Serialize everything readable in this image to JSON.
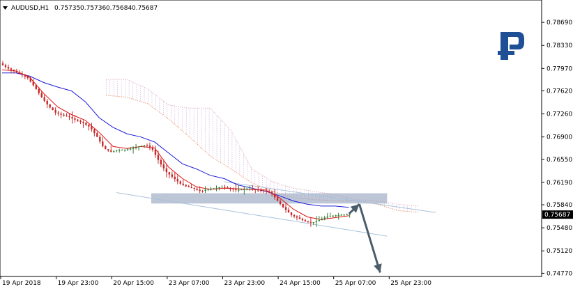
{
  "header": {
    "symbol": "AUDUSD,H1",
    "open": "0.75735",
    "high": "0.75736",
    "low": "0.75684",
    "close": "0.75687"
  },
  "price_tag": "0.75687",
  "logo": "R",
  "chart_data": {
    "type": "candlestick",
    "symbol": "AUDUSD",
    "timeframe": "H1",
    "ylim": [
      0.7472,
      0.7904
    ],
    "y_ticks": [
      "0.78690",
      "0.78330",
      "0.77970",
      "0.77620",
      "0.77260",
      "0.76900",
      "0.76550",
      "0.76190",
      "0.75840",
      "0.75480",
      "0.75120",
      "0.74770"
    ],
    "x_ticks": [
      "19 Apr 2018",
      "19 Apr 23:00",
      "20 Apr 15:00",
      "23 Apr 07:00",
      "23 Apr 23:00",
      "24 Apr 15:00",
      "25 Apr 07:00",
      "25 Apr 23:00"
    ],
    "last_price": 0.75687,
    "price_path": [
      [
        0,
        0.7805
      ],
      [
        4,
        0.7798
      ],
      [
        8,
        0.7793
      ],
      [
        12,
        0.7788
      ],
      [
        16,
        0.7782
      ],
      [
        20,
        0.7768
      ],
      [
        24,
        0.7752
      ],
      [
        28,
        0.7738
      ],
      [
        32,
        0.7728
      ],
      [
        36,
        0.7724
      ],
      [
        40,
        0.7721
      ],
      [
        44,
        0.7716
      ],
      [
        48,
        0.7712
      ],
      [
        52,
        0.7705
      ],
      [
        56,
        0.769
      ],
      [
        60,
        0.7672
      ],
      [
        64,
        0.7667
      ],
      [
        68,
        0.767
      ],
      [
        72,
        0.767
      ],
      [
        76,
        0.7672
      ],
      [
        80,
        0.7675
      ],
      [
        84,
        0.7678
      ],
      [
        88,
        0.767
      ],
      [
        92,
        0.765
      ],
      [
        96,
        0.7635
      ],
      [
        100,
        0.7626
      ],
      [
        104,
        0.7617
      ],
      [
        108,
        0.7612
      ],
      [
        112,
        0.7609
      ],
      [
        116,
        0.7605
      ],
      [
        120,
        0.7609
      ],
      [
        124,
        0.761
      ],
      [
        128,
        0.7612
      ],
      [
        132,
        0.761
      ],
      [
        136,
        0.7607
      ],
      [
        140,
        0.7608
      ],
      [
        144,
        0.7609
      ],
      [
        148,
        0.7607
      ],
      [
        152,
        0.7606
      ],
      [
        156,
        0.7604
      ],
      [
        160,
        0.759
      ],
      [
        164,
        0.7578
      ],
      [
        168,
        0.7568
      ],
      [
        172,
        0.7563
      ],
      [
        176,
        0.7558
      ],
      [
        180,
        0.7556
      ],
      [
        184,
        0.756
      ],
      [
        188,
        0.7565
      ],
      [
        192,
        0.7567
      ],
      [
        196,
        0.7568
      ],
      [
        200,
        0.7569
      ]
    ],
    "tenkan_path": [
      [
        0,
        0.7795
      ],
      [
        8,
        0.7793
      ],
      [
        16,
        0.7783
      ],
      [
        24,
        0.7758
      ],
      [
        32,
        0.7737
      ],
      [
        40,
        0.7725
      ],
      [
        48,
        0.7716
      ],
      [
        56,
        0.7697
      ],
      [
        64,
        0.7675
      ],
      [
        72,
        0.7672
      ],
      [
        80,
        0.7675
      ],
      [
        88,
        0.7673
      ],
      [
        96,
        0.7643
      ],
      [
        104,
        0.7625
      ],
      [
        112,
        0.7612
      ],
      [
        120,
        0.7608
      ],
      [
        128,
        0.761
      ],
      [
        136,
        0.7609
      ],
      [
        144,
        0.7608
      ],
      [
        152,
        0.7607
      ],
      [
        160,
        0.7595
      ],
      [
        168,
        0.7577
      ],
      [
        176,
        0.7565
      ],
      [
        184,
        0.7561
      ],
      [
        192,
        0.7564
      ],
      [
        200,
        0.7567
      ]
    ],
    "kijun_path": [
      [
        0,
        0.779
      ],
      [
        8,
        0.779
      ],
      [
        16,
        0.7785
      ],
      [
        24,
        0.7775
      ],
      [
        32,
        0.7768
      ],
      [
        40,
        0.7762
      ],
      [
        48,
        0.7745
      ],
      [
        56,
        0.772
      ],
      [
        64,
        0.7705
      ],
      [
        72,
        0.7695
      ],
      [
        80,
        0.769
      ],
      [
        88,
        0.7682
      ],
      [
        96,
        0.7665
      ],
      [
        104,
        0.7648
      ],
      [
        112,
        0.764
      ],
      [
        120,
        0.763
      ],
      [
        128,
        0.7625
      ],
      [
        136,
        0.7615
      ],
      [
        144,
        0.761
      ],
      [
        152,
        0.7605
      ],
      [
        160,
        0.7598
      ],
      [
        168,
        0.759
      ],
      [
        176,
        0.7585
      ],
      [
        184,
        0.7582
      ],
      [
        192,
        0.7582
      ],
      [
        200,
        0.758
      ]
    ],
    "cloud_span_a": [
      [
        60,
        0.7755
      ],
      [
        72,
        0.7752
      ],
      [
        84,
        0.7742
      ],
      [
        96,
        0.7718
      ],
      [
        108,
        0.769
      ],
      [
        120,
        0.766
      ],
      [
        132,
        0.764
      ],
      [
        144,
        0.7618
      ],
      [
        156,
        0.7605
      ],
      [
        168,
        0.7595
      ],
      [
        180,
        0.7592
      ],
      [
        192,
        0.759
      ],
      [
        204,
        0.759
      ],
      [
        216,
        0.7585
      ],
      [
        228,
        0.7575
      ],
      [
        240,
        0.7572
      ]
    ],
    "cloud_span_b": [
      [
        60,
        0.778
      ],
      [
        72,
        0.778
      ],
      [
        84,
        0.7765
      ],
      [
        96,
        0.774
      ],
      [
        108,
        0.7735
      ],
      [
        120,
        0.7735
      ],
      [
        132,
        0.77
      ],
      [
        144,
        0.764
      ],
      [
        156,
        0.762
      ],
      [
        168,
        0.761
      ],
      [
        180,
        0.7605
      ],
      [
        192,
        0.76
      ],
      [
        204,
        0.7592
      ],
      [
        216,
        0.759
      ],
      [
        228,
        0.7585
      ],
      [
        240,
        0.7582
      ]
    ],
    "channel_upper": [
      [
        128,
        0.762
      ],
      [
        250,
        0.7572
      ]
    ],
    "channel_lower": [
      [
        66,
        0.7603
      ],
      [
        222,
        0.7535
      ]
    ],
    "zone": {
      "x0": 86,
      "x1": 222,
      "y_top": 0.7602,
      "y_bottom": 0.7586
    },
    "forecast_path": [
      [
        200,
        0.757
      ],
      [
        206,
        0.7585
      ],
      [
        218,
        0.7478
      ]
    ]
  }
}
